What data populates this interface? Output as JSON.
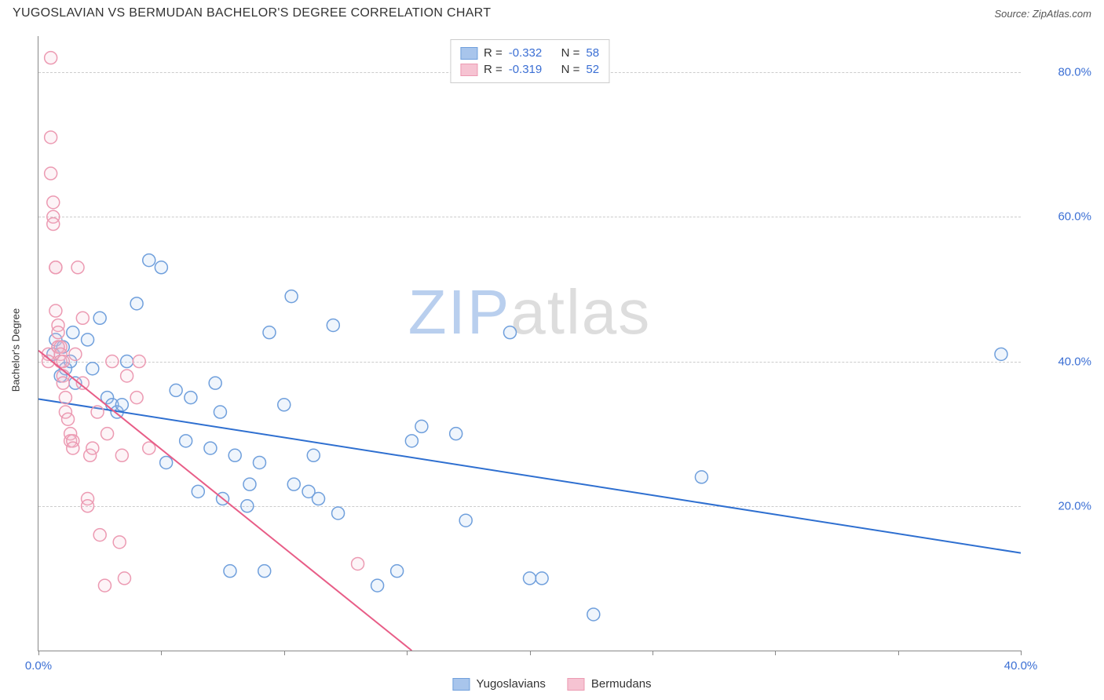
{
  "header": {
    "title": "YUGOSLAVIAN VS BERMUDAN BACHELOR'S DEGREE CORRELATION CHART",
    "source_prefix": "Source: ",
    "source_name": "ZipAtlas.com"
  },
  "watermark": {
    "part1": "ZIP",
    "part2": "atlas"
  },
  "chart": {
    "type": "scatter",
    "ylabel": "Bachelor's Degree",
    "xlim": [
      0,
      40
    ],
    "ylim": [
      0,
      85
    ],
    "xtick_positions": [
      0,
      5,
      10,
      15,
      20,
      25,
      30,
      35,
      40
    ],
    "xtick_labels_shown": {
      "0": "0.0%",
      "40": "40.0%"
    },
    "ytick_positions": [
      20,
      40,
      60,
      80
    ],
    "ytick_labels": {
      "20": "20.0%",
      "40": "40.0%",
      "60": "60.0%",
      "80": "80.0%"
    },
    "background_color": "#ffffff",
    "grid_color": "#cccccc",
    "axis_color": "#888888",
    "tick_label_color": "#3b6fd4",
    "marker_radius": 8,
    "marker_stroke_width": 1.5,
    "marker_fill_opacity": 0.18,
    "series": [
      {
        "name": "Yugoslavians",
        "color_fill": "#a8c5ec",
        "color_stroke": "#6f9fdc",
        "trend_color": "#2e6fd0",
        "trend_width": 2,
        "trend": {
          "x1": 0,
          "y1": 34.8,
          "x2": 40,
          "y2": 13.5
        },
        "r": "-0.332",
        "n": "58",
        "points": [
          [
            0.6,
            41
          ],
          [
            0.7,
            43
          ],
          [
            0.9,
            38
          ],
          [
            1.0,
            42
          ],
          [
            1.1,
            39
          ],
          [
            1.3,
            40
          ],
          [
            1.4,
            44
          ],
          [
            1.5,
            37
          ],
          [
            2.0,
            43
          ],
          [
            2.2,
            39
          ],
          [
            2.5,
            46
          ],
          [
            2.8,
            35
          ],
          [
            3.0,
            34
          ],
          [
            3.2,
            33
          ],
          [
            3.4,
            34
          ],
          [
            3.6,
            40
          ],
          [
            4.0,
            48
          ],
          [
            4.5,
            54
          ],
          [
            5.0,
            53
          ],
          [
            5.2,
            26
          ],
          [
            5.6,
            36
          ],
          [
            6.0,
            29
          ],
          [
            6.2,
            35
          ],
          [
            6.5,
            22
          ],
          [
            7.0,
            28
          ],
          [
            7.2,
            37
          ],
          [
            7.4,
            33
          ],
          [
            7.5,
            21
          ],
          [
            7.8,
            11
          ],
          [
            8.0,
            27
          ],
          [
            8.5,
            20
          ],
          [
            8.6,
            23
          ],
          [
            9.0,
            26
          ],
          [
            9.2,
            11
          ],
          [
            9.4,
            44
          ],
          [
            10.0,
            34
          ],
          [
            10.3,
            49
          ],
          [
            10.4,
            23
          ],
          [
            11.0,
            22
          ],
          [
            11.2,
            27
          ],
          [
            11.4,
            21
          ],
          [
            12.0,
            45
          ],
          [
            12.2,
            19
          ],
          [
            13.8,
            9
          ],
          [
            14.6,
            11
          ],
          [
            15.2,
            29
          ],
          [
            15.6,
            31
          ],
          [
            17.0,
            30
          ],
          [
            17.4,
            18
          ],
          [
            19.2,
            44
          ],
          [
            20.0,
            10
          ],
          [
            20.5,
            10
          ],
          [
            22.6,
            5
          ],
          [
            27.0,
            24
          ],
          [
            39.2,
            41
          ]
        ]
      },
      {
        "name": "Bermudans",
        "color_fill": "#f6c3d2",
        "color_stroke": "#ec9ab2",
        "trend_color": "#e85d87",
        "trend_width": 2,
        "trend": {
          "x1": 0,
          "y1": 41.5,
          "x2": 15.2,
          "y2": 0
        },
        "r": "-0.319",
        "n": "52",
        "points": [
          [
            0.4,
            41
          ],
          [
            0.4,
            40
          ],
          [
            0.5,
            82
          ],
          [
            0.5,
            71
          ],
          [
            0.5,
            66
          ],
          [
            0.6,
            62
          ],
          [
            0.6,
            60
          ],
          [
            0.6,
            59
          ],
          [
            0.7,
            53
          ],
          [
            0.7,
            53
          ],
          [
            0.7,
            47
          ],
          [
            0.8,
            45
          ],
          [
            0.8,
            44
          ],
          [
            0.8,
            42
          ],
          [
            0.8,
            42
          ],
          [
            0.9,
            42
          ],
          [
            0.9,
            41
          ],
          [
            0.9,
            40
          ],
          [
            1.0,
            40
          ],
          [
            1.0,
            38
          ],
          [
            1.0,
            37
          ],
          [
            1.1,
            35
          ],
          [
            1.1,
            33
          ],
          [
            1.2,
            32
          ],
          [
            1.3,
            30
          ],
          [
            1.3,
            29
          ],
          [
            1.4,
            29
          ],
          [
            1.4,
            28
          ],
          [
            1.5,
            41
          ],
          [
            1.6,
            53
          ],
          [
            1.8,
            46
          ],
          [
            1.8,
            37
          ],
          [
            2.0,
            21
          ],
          [
            2.0,
            20
          ],
          [
            2.1,
            27
          ],
          [
            2.2,
            28
          ],
          [
            2.4,
            33
          ],
          [
            2.5,
            16
          ],
          [
            2.7,
            9
          ],
          [
            2.8,
            30
          ],
          [
            3.0,
            40
          ],
          [
            3.3,
            15
          ],
          [
            3.4,
            27
          ],
          [
            3.5,
            10
          ],
          [
            3.6,
            38
          ],
          [
            4.0,
            35
          ],
          [
            4.1,
            40
          ],
          [
            4.5,
            28
          ],
          [
            13.0,
            12
          ]
        ]
      }
    ],
    "r_legend": {
      "r_label": "R =",
      "n_label": "N ="
    },
    "bottom_legend": {
      "items": [
        "Yugoslavians",
        "Bermudans"
      ]
    }
  }
}
